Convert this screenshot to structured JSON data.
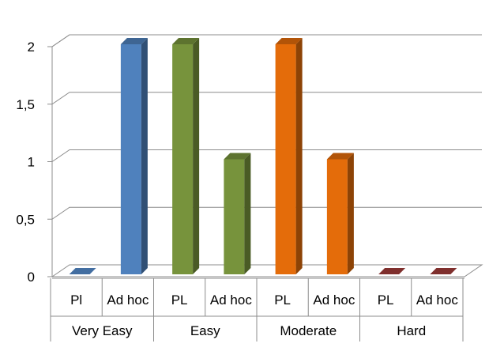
{
  "chart_data": {
    "type": "bar",
    "style": "3d-clustered",
    "ylim": [
      0,
      2
    ],
    "yticks": [
      "0",
      "0,5",
      "1",
      "1,5",
      "2"
    ],
    "ytick_values": [
      0,
      0.5,
      1,
      1.5,
      2
    ],
    "grid": true,
    "legend": "none",
    "groups": [
      {
        "label": "Very Easy",
        "color": "#4F81BD",
        "bars": [
          {
            "label": "Pl",
            "value": 0
          },
          {
            "label": "Ad hoc",
            "value": 2
          }
        ]
      },
      {
        "label": "Easy",
        "color": "#77933C",
        "bars": [
          {
            "label": "PL",
            "value": 2
          },
          {
            "label": "Ad hoc",
            "value": 1
          }
        ]
      },
      {
        "label": "Moderate",
        "color": "#E46C0A",
        "bars": [
          {
            "label": "PL",
            "value": 2
          },
          {
            "label": "Ad hoc",
            "value": 1
          }
        ]
      },
      {
        "label": "Hard",
        "color": "#953735",
        "bars": [
          {
            "label": "PL",
            "value": 0
          },
          {
            "label": "Ad hoc",
            "value": 0
          }
        ]
      }
    ]
  }
}
